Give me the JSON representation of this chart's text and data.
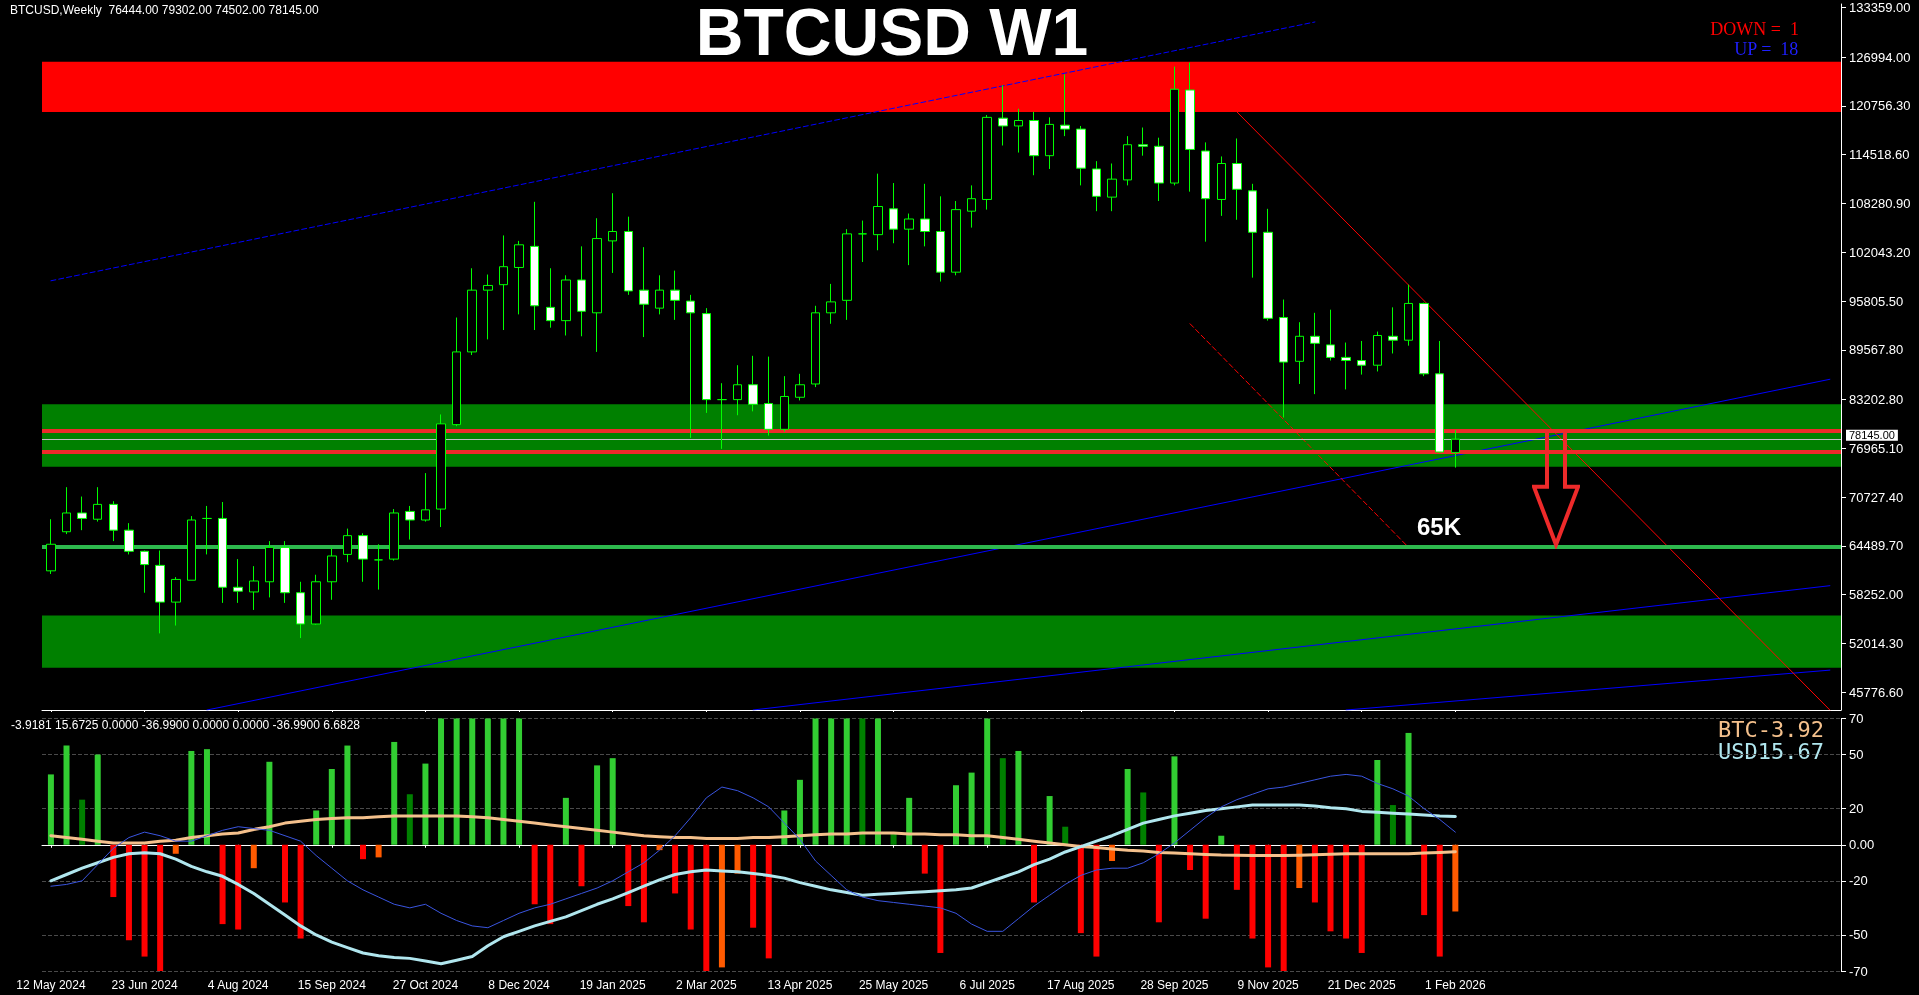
{
  "chart_data": [
    {
      "type": "candlestick",
      "title": "BTCUSD W1",
      "color": "#00ff00",
      "x": [
        "2024-05-12",
        "2024-05-19",
        "2024-05-26",
        "2024-06-02",
        "2024-06-09",
        "2024-06-16",
        "2024-06-23",
        "2024-06-30",
        "2024-07-07",
        "2024-07-14",
        "2024-07-21",
        "2024-07-28",
        "2024-08-04",
        "2024-08-11",
        "2024-08-18",
        "2024-08-25",
        "2024-09-01",
        "2024-09-08",
        "2024-09-15",
        "2024-09-22",
        "2024-09-29",
        "2024-10-06",
        "2024-10-13",
        "2024-10-20",
        "2024-10-27",
        "2024-11-03",
        "2024-11-10",
        "2024-11-17",
        "2024-11-24",
        "2024-12-01",
        "2024-12-08",
        "2024-12-15",
        "2024-12-22",
        "2024-12-29",
        "2025-01-05",
        "2025-01-12",
        "2025-01-19",
        "2025-01-26",
        "2025-02-02",
        "2025-02-09",
        "2025-02-16",
        "2025-02-23",
        "2025-03-02",
        "2025-03-09",
        "2025-03-16",
        "2025-03-23",
        "2025-03-30",
        "2025-04-06",
        "2025-04-13",
        "2025-04-20",
        "2025-04-27",
        "2025-05-04",
        "2025-05-11",
        "2025-05-18",
        "2025-05-25",
        "2025-06-01",
        "2025-06-08",
        "2025-06-15",
        "2025-06-22",
        "2025-06-29",
        "2025-07-06",
        "2025-07-13",
        "2025-07-20",
        "2025-07-27",
        "2025-08-03",
        "2025-08-10",
        "2025-08-17",
        "2025-08-24",
        "2025-08-31",
        "2025-09-07",
        "2025-09-14",
        "2025-09-21",
        "2025-09-28",
        "2025-10-05",
        "2025-10-12",
        "2025-10-19",
        "2025-10-26",
        "2025-11-02",
        "2025-11-09",
        "2025-11-16",
        "2025-11-23",
        "2025-11-30",
        "2025-12-07",
        "2025-12-14",
        "2025-12-21",
        "2025-12-28",
        "2026-01-04",
        "2026-01-11",
        "2026-01-18",
        "2026-01-25",
        "2026-02-01"
      ],
      "xlim": [
        "2024-05-08",
        "2026-07-24"
      ],
      "xticks": [
        {
          "value": "2024-05-12",
          "label": null
        },
        {
          "value": "2024-06-23",
          "label": null
        },
        {
          "value": "2024-08-04",
          "label": null
        },
        {
          "value": "2024-09-15",
          "label": null
        },
        {
          "value": "2024-10-27",
          "label": null
        },
        {
          "value": "2024-12-08",
          "label": null
        },
        {
          "value": "2025-01-19",
          "label": null
        },
        {
          "value": "2025-03-02",
          "label": null
        },
        {
          "value": "2025-04-13",
          "label": null
        },
        {
          "value": "2025-05-25",
          "label": null
        },
        {
          "value": "2025-07-06",
          "label": null
        },
        {
          "value": "2025-08-17",
          "label": null
        },
        {
          "value": "2025-09-28",
          "label": null
        },
        {
          "value": "2025-11-09",
          "label": null
        },
        {
          "value": "2025-12-21",
          "label": null
        },
        {
          "value": "2026-02-01",
          "label": null
        }
      ],
      "ohlc": [
        [
          61300,
          67900,
          60900,
          64700
        ],
        [
          66300,
          72000,
          66000,
          68700
        ],
        [
          68700,
          70800,
          66500,
          68000
        ],
        [
          67900,
          72000,
          67600,
          69800
        ],
        [
          69800,
          70200,
          65100,
          66500
        ],
        [
          66500,
          67400,
          63400,
          63800
        ],
        [
          63800,
          63900,
          58500,
          62100
        ],
        [
          62000,
          63900,
          53300,
          57300
        ],
        [
          57300,
          60500,
          54300,
          60200
        ],
        [
          60100,
          68300,
          60100,
          67800
        ],
        [
          68000,
          69600,
          63400,
          68000
        ],
        [
          68000,
          70100,
          57200,
          59200
        ],
        [
          59200,
          62800,
          57200,
          58700
        ],
        [
          58600,
          61900,
          56300,
          60000
        ],
        [
          59900,
          65100,
          57900,
          64300
        ],
        [
          64300,
          65100,
          57200,
          58500
        ],
        [
          58500,
          59900,
          52700,
          54500
        ],
        [
          54500,
          60800,
          54400,
          59900
        ],
        [
          59900,
          64200,
          57600,
          63200
        ],
        [
          63400,
          66700,
          62400,
          65800
        ],
        [
          65800,
          66100,
          59900,
          62800
        ],
        [
          62700,
          64700,
          58900,
          62700
        ],
        [
          62800,
          69200,
          62600,
          68700
        ],
        [
          68900,
          69600,
          65300,
          67800
        ],
        [
          67800,
          73800,
          67600,
          69100
        ],
        [
          69200,
          81300,
          66900,
          80100
        ],
        [
          80000,
          93700,
          79800,
          89300
        ],
        [
          89300,
          100000,
          88900,
          97200
        ],
        [
          97200,
          99200,
          90900,
          97800
        ],
        [
          97900,
          104200,
          92100,
          100200
        ],
        [
          100100,
          103500,
          94100,
          103000
        ],
        [
          102800,
          108500,
          92100,
          95200
        ],
        [
          95000,
          100000,
          92400,
          93300
        ],
        [
          93300,
          99100,
          91400,
          98500
        ],
        [
          98500,
          102800,
          91300,
          94500
        ],
        [
          94300,
          106400,
          89300,
          103800
        ],
        [
          103500,
          109600,
          99400,
          104700
        ],
        [
          104700,
          106600,
          96600,
          97100
        ],
        [
          97200,
          102700,
          91200,
          95400
        ],
        [
          94900,
          99100,
          94100,
          97200
        ],
        [
          97200,
          99700,
          93400,
          95900
        ],
        [
          95800,
          96600,
          78300,
          94300
        ],
        [
          94200,
          94900,
          81500,
          83200
        ],
        [
          83200,
          85300,
          76900,
          83200
        ],
        [
          83200,
          87600,
          81200,
          85100
        ],
        [
          85100,
          88800,
          81700,
          82600
        ],
        [
          82700,
          88700,
          78600,
          79400
        ],
        [
          79400,
          86200,
          79100,
          83600
        ],
        [
          83500,
          86500,
          83100,
          85100
        ],
        [
          85200,
          95200,
          84800,
          94300
        ],
        [
          94300,
          98000,
          92900,
          95700
        ],
        [
          95900,
          105000,
          93400,
          104400
        ],
        [
          104400,
          106100,
          100800,
          104400
        ],
        [
          104300,
          112100,
          102300,
          107900
        ],
        [
          107600,
          110900,
          103200,
          105000
        ],
        [
          105000,
          107000,
          100400,
          106300
        ],
        [
          106300,
          110800,
          102800,
          104700
        ],
        [
          104700,
          109200,
          98300,
          99500
        ],
        [
          99500,
          108600,
          99100,
          107500
        ],
        [
          107300,
          110600,
          105200,
          108900
        ],
        [
          108800,
          119600,
          107500,
          119300
        ],
        [
          119200,
          123400,
          115700,
          118200
        ],
        [
          118200,
          120400,
          114800,
          118900
        ],
        [
          118900,
          120000,
          111900,
          114400
        ],
        [
          114400,
          119300,
          112700,
          118400
        ],
        [
          118300,
          124800,
          116900,
          117800
        ],
        [
          117800,
          118200,
          110600,
          112800
        ],
        [
          112700,
          113700,
          107300,
          109200
        ],
        [
          109100,
          113400,
          107300,
          111400
        ],
        [
          111300,
          116900,
          110600,
          115800
        ],
        [
          115800,
          118000,
          114400,
          115600
        ],
        [
          115600,
          116700,
          108600,
          110900
        ],
        [
          110900,
          125800,
          110600,
          122900
        ],
        [
          122800,
          126300,
          109800,
          115200
        ],
        [
          115000,
          116100,
          103400,
          108900
        ],
        [
          108800,
          114300,
          106700,
          113400
        ],
        [
          113400,
          116600,
          106200,
          110100
        ],
        [
          109900,
          110800,
          98800,
          104600
        ],
        [
          104600,
          107600,
          93300,
          93600
        ],
        [
          93700,
          96000,
          80900,
          88000
        ],
        [
          88100,
          93100,
          85200,
          91300
        ],
        [
          91300,
          94300,
          83900,
          90400
        ],
        [
          90200,
          94700,
          88200,
          88600
        ],
        [
          88600,
          90500,
          84500,
          88200
        ],
        [
          88200,
          90700,
          86400,
          87600
        ],
        [
          87600,
          91900,
          86800,
          91400
        ],
        [
          91300,
          95000,
          89100,
          90800
        ],
        [
          90800,
          97900,
          90100,
          95500
        ],
        [
          95500,
          95600,
          86200,
          86500
        ],
        [
          86500,
          90700,
          76400,
          76500
        ],
        [
          76444,
          79302,
          74502,
          78145
        ]
      ],
      "series": [
        {
          "type": "line",
          "color": "#0000ff",
          "line_style": "dashed",
          "x": [
            "2024-05-12",
            "2025-11-30"
          ],
          "values": [
            98400,
            131500
          ]
        },
        {
          "type": "line",
          "color": "#0000ff",
          "line_style": "solid",
          "x": [
            "2024-07-21",
            "2026-07-19"
          ],
          "values": [
            43500,
            85800
          ]
        },
        {
          "type": "line",
          "color": "#0000ff",
          "line_style": "solid",
          "x": [
            "2025-03-23",
            "2026-07-19"
          ],
          "values": [
            43500,
            59400
          ]
        },
        {
          "type": "line",
          "color": "#0000ff",
          "line_style": "solid",
          "x": [
            "2025-12-14",
            "2026-07-19"
          ],
          "values": [
            43500,
            48600
          ]
        },
        {
          "type": "line",
          "color": "#ff0000",
          "line_style": "solid",
          "x": [
            "2025-10-26",
            "2026-07-19"
          ],
          "values": [
            120000,
            43500
          ]
        },
        {
          "type": "line",
          "color": "#ff0000",
          "line_style": "dashed",
          "x": [
            "2025-10-05",
            "2026-01-11"
          ],
          "values": [
            92900,
            64300
          ]
        }
      ],
      "ylim": [
        43500,
        133800
      ],
      "yticks": [
        {
          "value": 133359,
          "label": "133359.00"
        },
        {
          "value": 126994,
          "label": "126994.00"
        },
        {
          "value": 120756.3,
          "label": "120756.30"
        },
        {
          "value": 114518.6,
          "label": "114518.60"
        },
        {
          "value": 108280.9,
          "label": "108280.90"
        },
        {
          "value": 102043.2,
          "label": "102043.20"
        },
        {
          "value": 95805.5,
          "label": "95805.50"
        },
        {
          "value": 89567.8,
          "label": "89567.80"
        },
        {
          "value": 83202.8,
          "label": "83202.80"
        },
        {
          "value": 76965.1,
          "label": "76965.10"
        },
        {
          "value": 70727.4,
          "label": "70727.40"
        },
        {
          "value": 64489.7,
          "label": "64489.70"
        },
        {
          "value": 58252,
          "label": "58252.00"
        },
        {
          "value": 52014.3,
          "label": "52014.30"
        },
        {
          "value": 45776.6,
          "label": "45776.60"
        }
      ],
      "tick_labels": "y",
      "bands": [
        {
          "axis": "y",
          "from": 120000,
          "to": 126400,
          "color": "#ff0000"
        },
        {
          "axis": "y",
          "from": 74600,
          "to": 82600,
          "color": "#008000"
        },
        {
          "axis": "y",
          "from": 48900,
          "to": 55600,
          "color": "#008000"
        }
      ],
      "ref_lines": [
        {
          "axis": "y",
          "value": 78145,
          "label": "78145.00",
          "color": "#c0c0c0"
        },
        {
          "axis": "y",
          "value": 64400,
          "label": "65K",
          "color": "#2db84d"
        },
        {
          "axis": "y",
          "value": 76500,
          "color": "#ee2a2a"
        },
        {
          "axis": "y",
          "value": 79200,
          "color": "#ee2a2a"
        }
      ],
      "annotations": [
        "BTCUSD,Weekly  76444.00 79302.00 74502.00 78145.00",
        "DOWN =  1",
        "UP =  18"
      ]
    },
    {
      "type": "bar",
      "title": "-3.9181 15.6725 0.0000 -36.9900 0.0000 0.0000 -36.9900 6.6828",
      "x": [
        "2024-05-12",
        "2024-05-19",
        "2024-05-26",
        "2024-06-02",
        "2024-06-09",
        "2024-06-16",
        "2024-06-23",
        "2024-06-30",
        "2024-07-07",
        "2024-07-14",
        "2024-07-21",
        "2024-07-28",
        "2024-08-04",
        "2024-08-11",
        "2024-08-18",
        "2024-08-25",
        "2024-09-01",
        "2024-09-08",
        "2024-09-15",
        "2024-09-22",
        "2024-09-29",
        "2024-10-06",
        "2024-10-13",
        "2024-10-20",
        "2024-10-27",
        "2024-11-03",
        "2024-11-10",
        "2024-11-17",
        "2024-11-24",
        "2024-12-01",
        "2024-12-08",
        "2024-12-15",
        "2024-12-22",
        "2024-12-29",
        "2025-01-05",
        "2025-01-12",
        "2025-01-19",
        "2025-01-26",
        "2025-02-02",
        "2025-02-09",
        "2025-02-16",
        "2025-02-23",
        "2025-03-02",
        "2025-03-09",
        "2025-03-16",
        "2025-03-23",
        "2025-03-30",
        "2025-04-06",
        "2025-04-13",
        "2025-04-20",
        "2025-04-27",
        "2025-05-04",
        "2025-05-11",
        "2025-05-18",
        "2025-05-25",
        "2025-06-01",
        "2025-06-08",
        "2025-06-15",
        "2025-06-22",
        "2025-06-29",
        "2025-07-06",
        "2025-07-13",
        "2025-07-20",
        "2025-07-27",
        "2025-08-03",
        "2025-08-10",
        "2025-08-17",
        "2025-08-24",
        "2025-08-31",
        "2025-09-07",
        "2025-09-14",
        "2025-09-21",
        "2025-09-28",
        "2025-10-05",
        "2025-10-12",
        "2025-10-19",
        "2025-10-26",
        "2025-11-02",
        "2025-11-09",
        "2025-11-16",
        "2025-11-23",
        "2025-11-30",
        "2025-12-07",
        "2025-12-14",
        "2025-12-21",
        "2025-12-28",
        "2026-01-04",
        "2026-01-11",
        "2026-01-18",
        "2026-01-25",
        "2026-02-01"
      ],
      "xlim": [
        "2024-05-08",
        "2026-07-24"
      ],
      "xticks": [
        {
          "value": "2024-05-12",
          "label": "12 May 2024"
        },
        {
          "value": "2024-06-23",
          "label": "23 Jun 2024"
        },
        {
          "value": "2024-08-04",
          "label": "4 Aug 2024"
        },
        {
          "value": "2024-09-15",
          "label": "15 Sep 2024"
        },
        {
          "value": "2024-10-27",
          "label": "27 Oct 2024"
        },
        {
          "value": "2024-12-08",
          "label": "8 Dec 2024"
        },
        {
          "value": "2025-01-19",
          "label": "19 Jan 2025"
        },
        {
          "value": "2025-03-02",
          "label": "2 Mar 2025"
        },
        {
          "value": "2025-04-13",
          "label": "13 Apr 2025"
        },
        {
          "value": "2025-05-25",
          "label": "25 May 2025"
        },
        {
          "value": "2025-07-06",
          "label": "6 Jul 2025"
        },
        {
          "value": "2025-08-17",
          "label": "17 Aug 2025"
        },
        {
          "value": "2025-09-28",
          "label": "28 Sep 2025"
        },
        {
          "value": "2025-11-09",
          "label": "9 Nov 2025"
        },
        {
          "value": "2025-12-21",
          "label": "21 Dec 2025"
        },
        {
          "value": "2026-02-01",
          "label": "1 Feb 2026"
        }
      ],
      "series": [
        {
          "type": "bar",
          "values": [
            39,
            55,
            25,
            50,
            -29,
            -53,
            -62,
            -70,
            -5,
            52,
            53,
            -44,
            -47,
            -13,
            46,
            -32,
            -52,
            19,
            42,
            55,
            -8,
            -7,
            57,
            28,
            45,
            70,
            70,
            70,
            70,
            70,
            70,
            -33,
            -44,
            26,
            -23,
            44,
            48,
            -34,
            -43,
            -3,
            -27,
            -47,
            -70,
            -68,
            -16,
            -46,
            -63,
            19,
            36,
            70,
            70,
            70,
            70,
            70,
            6,
            26,
            -16,
            -60,
            33,
            40,
            70,
            48,
            52,
            -32,
            27,
            10,
            -49,
            -62,
            -9,
            42,
            29,
            -43,
            49,
            -14,
            -41,
            5,
            -25,
            -52,
            -68,
            -70,
            -24,
            -32,
            -48,
            -52,
            -60,
            47,
            22,
            62,
            -39,
            -62,
            -37
          ],
          "colors": [
            "#32cd32",
            "#32cd32",
            "#008000",
            "#32cd32",
            "#ff0000",
            "#ff0000",
            "#ff0000",
            "#ff0000",
            "#ff5a00",
            "#32cd32",
            "#32cd32",
            "#ff0000",
            "#ff0000",
            "#ff5a00",
            "#32cd32",
            "#ff0000",
            "#ff0000",
            "#32cd32",
            "#32cd32",
            "#32cd32",
            "#ff0000",
            "#ff5a00",
            "#32cd32",
            "#008000",
            "#32cd32",
            "#32cd32",
            "#32cd32",
            "#32cd32",
            "#32cd32",
            "#32cd32",
            "#32cd32",
            "#ff0000",
            "#ff0000",
            "#32cd32",
            "#ff0000",
            "#32cd32",
            "#32cd32",
            "#ff0000",
            "#ff0000",
            "#ff5a00",
            "#ff0000",
            "#ff0000",
            "#ff0000",
            "#ff5a00",
            "#ff5a00",
            "#ff0000",
            "#ff0000",
            "#32cd32",
            "#32cd32",
            "#32cd32",
            "#32cd32",
            "#32cd32",
            "#008000",
            "#32cd32",
            "#008000",
            "#32cd32",
            "#ff0000",
            "#ff0000",
            "#32cd32",
            "#32cd32",
            "#32cd32",
            "#008000",
            "#32cd32",
            "#ff0000",
            "#32cd32",
            "#008000",
            "#ff0000",
            "#ff0000",
            "#ff5a00",
            "#32cd32",
            "#008000",
            "#ff0000",
            "#32cd32",
            "#ff0000",
            "#ff0000",
            "#32cd32",
            "#ff0000",
            "#ff0000",
            "#ff0000",
            "#ff0000",
            "#ff5a00",
            "#ff0000",
            "#ff0000",
            "#ff0000",
            "#ff0000",
            "#32cd32",
            "#008000",
            "#32cd32",
            "#ff0000",
            "#ff0000",
            "#ff5a00"
          ]
        },
        {
          "type": "line",
          "name": "BTC-3.92",
          "color": "#f4c08c",
          "values": [
            5,
            4,
            3,
            2,
            1,
            1,
            1,
            2,
            2.5,
            4,
            5,
            6,
            6.5,
            8.5,
            10,
            12,
            13,
            14,
            14.5,
            15,
            15,
            15.5,
            16,
            16,
            16,
            16,
            16,
            15.5,
            15,
            14,
            13,
            12,
            11,
            10,
            9,
            8,
            7,
            6,
            5,
            4.5,
            4,
            4,
            3.5,
            3.5,
            3.5,
            4,
            4,
            4.5,
            5,
            5.5,
            6,
            6,
            6.5,
            6.5,
            6.5,
            6,
            6,
            5.5,
            5.5,
            5,
            5,
            4,
            3,
            2,
            1,
            0,
            -1,
            -1.5,
            -2.3,
            -3,
            -3.5,
            -4.3,
            -4.6,
            -5,
            -5.4,
            -5.7,
            -5.8,
            -5.9,
            -6,
            -6,
            -5.8,
            -5.5,
            -5.2,
            -5,
            -5,
            -5,
            -5,
            -5,
            -4.6,
            -4.3,
            -3.9
          ]
        },
        {
          "type": "line",
          "name": "USD15.67",
          "color": "#b0e6ee",
          "values": [
            -20,
            -16.5,
            -13,
            -10,
            -7,
            -5,
            -4.5,
            -5,
            -8,
            -12,
            -15,
            -17.5,
            -22,
            -27,
            -33,
            -39,
            -45,
            -50,
            -54,
            -57,
            -60,
            -61.5,
            -62.5,
            -63,
            -64.5,
            -66,
            -64,
            -62,
            -56,
            -51,
            -48,
            -45,
            -42.5,
            -40,
            -36.5,
            -33,
            -30,
            -26.5,
            -23,
            -19.5,
            -16.5,
            -15,
            -14,
            -14.5,
            -15,
            -16,
            -17,
            -18.5,
            -21,
            -23,
            -25,
            -26.5,
            -28,
            -27.5,
            -27,
            -26.5,
            -26,
            -25.5,
            -25,
            -24,
            -21,
            -18,
            -15,
            -11,
            -8,
            -4,
            -1,
            2,
            5,
            8.5,
            12,
            14,
            16,
            17.5,
            19,
            20,
            21,
            22,
            22,
            22,
            22,
            21.5,
            20.5,
            20,
            18.5,
            18,
            17.5,
            17,
            16.5,
            16,
            15.7
          ]
        },
        {
          "type": "line",
          "color": "#3a55e0",
          "values": [
            -23,
            -22,
            -20,
            -11,
            -2,
            4,
            7,
            5,
            2,
            2,
            5,
            8,
            10,
            9,
            8,
            5,
            2,
            -6,
            -13,
            -20,
            -25,
            -29,
            -33,
            -35,
            -33,
            -38,
            -42,
            -45,
            -46,
            -42,
            -38,
            -35,
            -33,
            -30,
            -27,
            -24,
            -20,
            -15,
            -10,
            -3,
            5,
            15,
            26,
            32,
            30,
            26,
            21,
            12,
            3,
            -9,
            -17,
            -25,
            -29,
            -31,
            -32,
            -33,
            -34,
            -35,
            -38,
            -44,
            -48,
            -48,
            -41,
            -34,
            -28,
            -22,
            -17,
            -14,
            -13,
            -13,
            -10,
            -5,
            1,
            8,
            15,
            21,
            25,
            28,
            31,
            32,
            34,
            36,
            38,
            39,
            38,
            34,
            31,
            27,
            20,
            14,
            7
          ]
        }
      ],
      "ylim": [
        -70,
        70
      ],
      "yticks": [
        70,
        50,
        20,
        {
          "value": 0,
          "label": "0.00"
        },
        -20,
        -50,
        -70
      ],
      "grid": "y",
      "legend": "top right",
      "marker": "none"
    }
  ]
}
